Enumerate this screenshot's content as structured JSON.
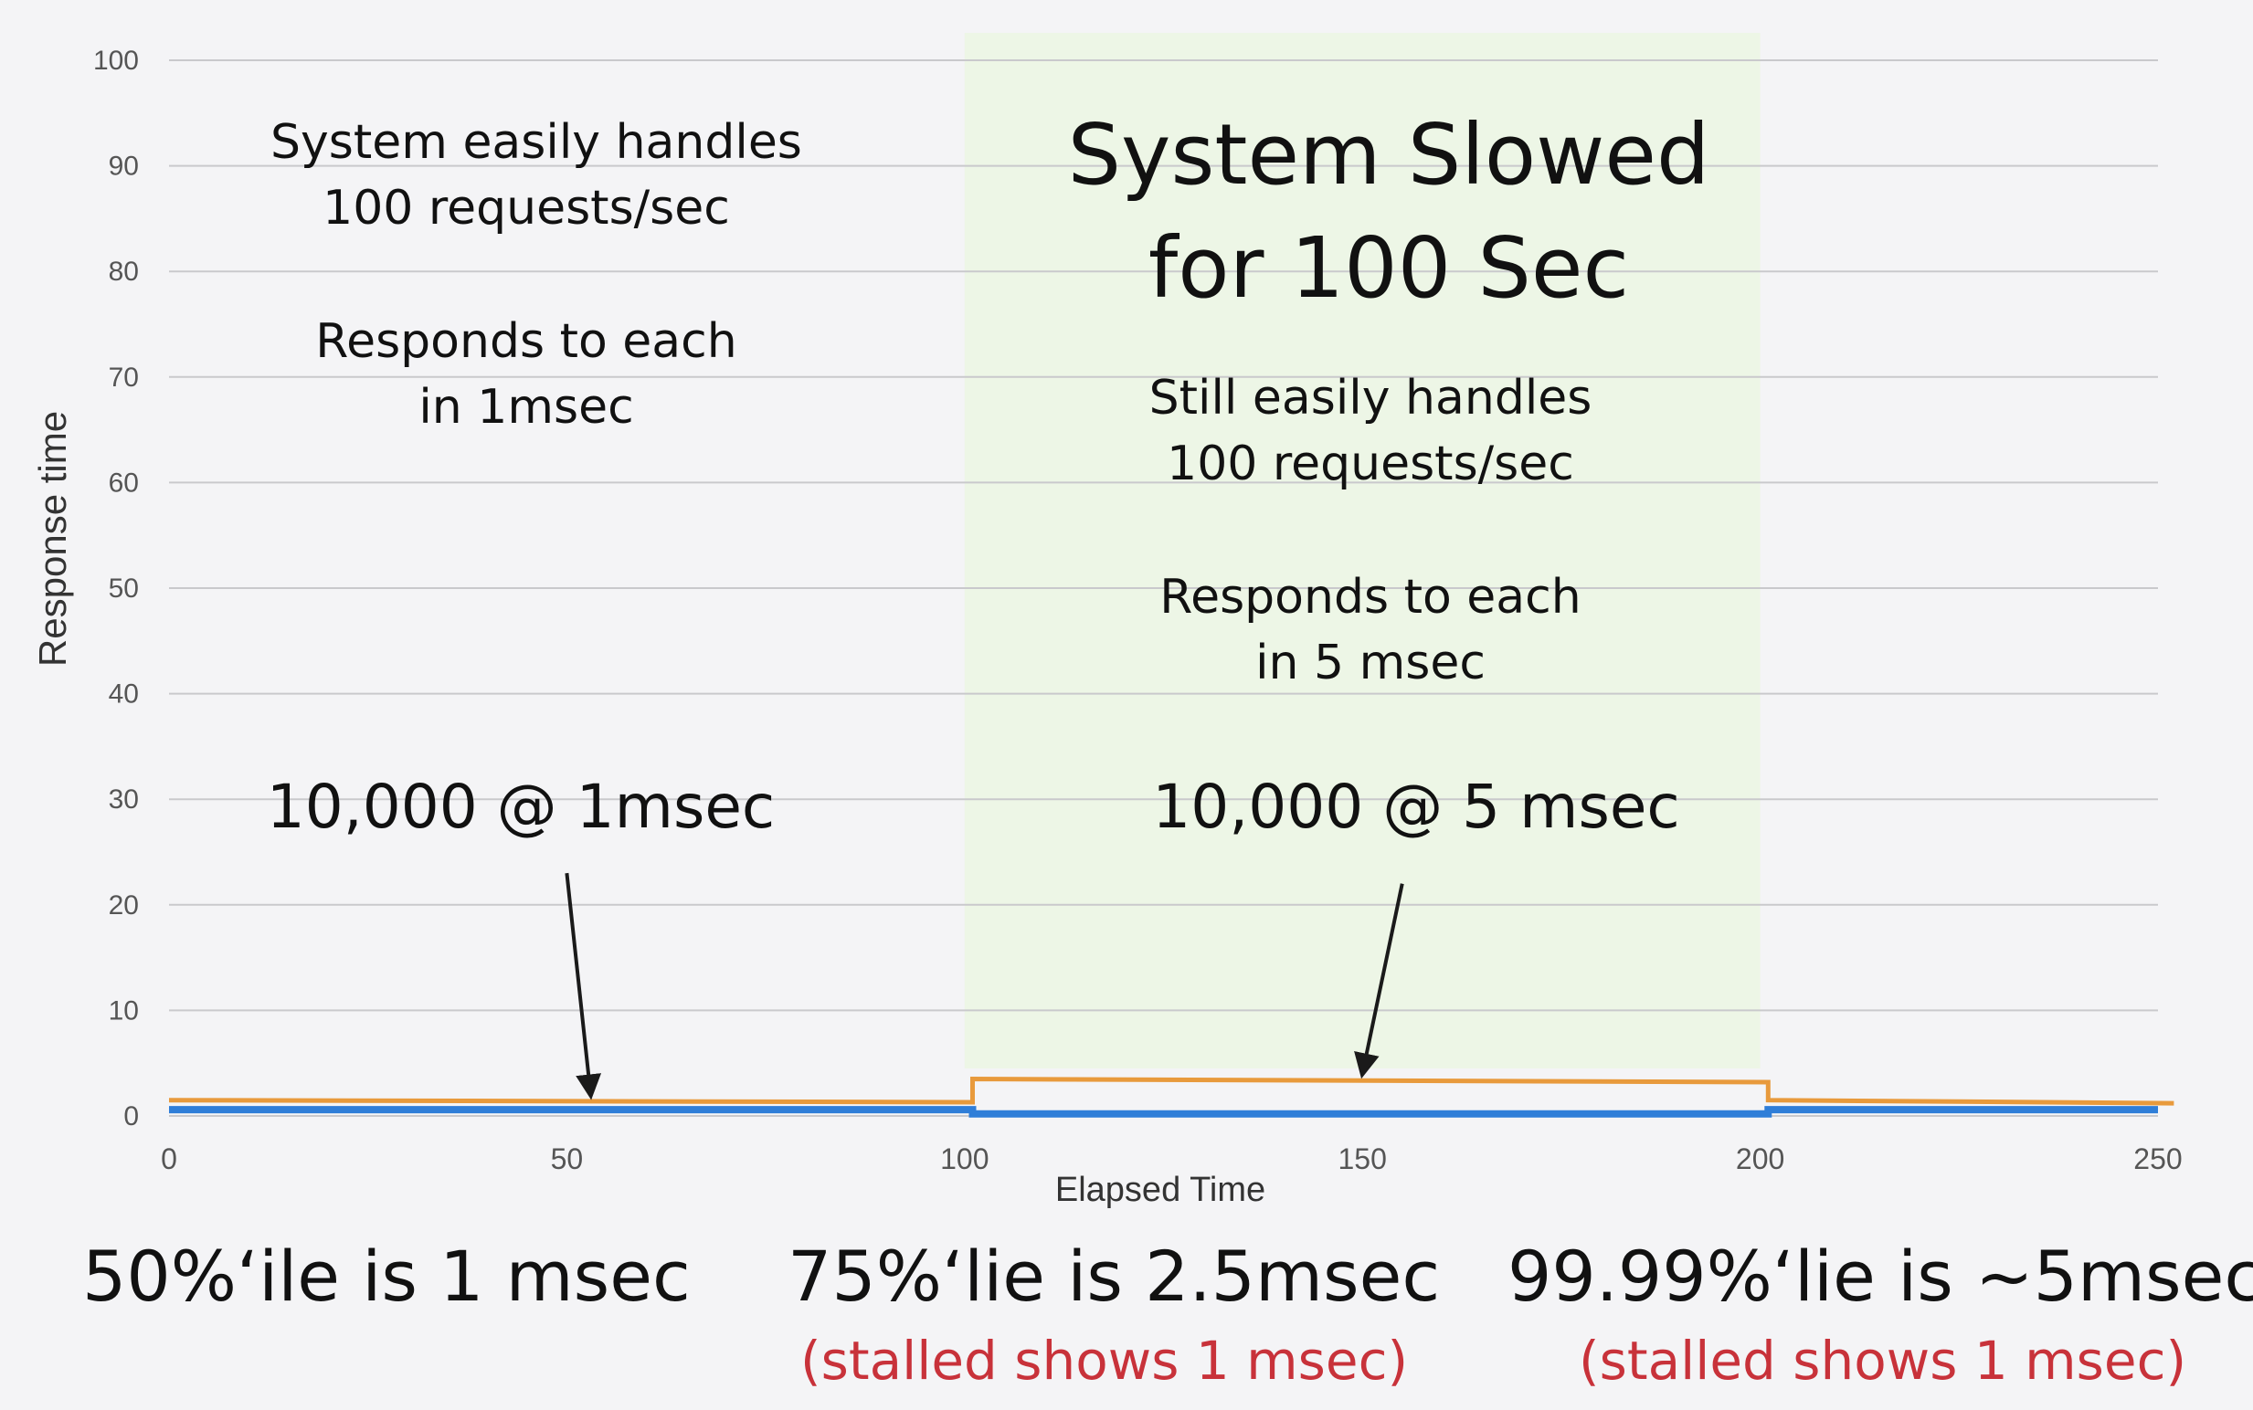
{
  "chart_data": {
    "type": "line",
    "xlabel": "Elapsed Time",
    "ylabel": "Response time",
    "xlim": [
      0,
      250
    ],
    "ylim": [
      0,
      100
    ],
    "x_ticks": [
      "0",
      "50",
      "100",
      "150",
      "200",
      "250"
    ],
    "y_ticks": [
      "0",
      "10",
      "20",
      "30",
      "40",
      "50",
      "60",
      "70",
      "80",
      "90",
      "100"
    ],
    "grid": true,
    "highlight_region": {
      "x_start": 100,
      "x_end": 200,
      "color": "#edf6e6"
    },
    "series": [
      {
        "color": "#e89a3c",
        "points": [
          [
            0,
            1.5
          ],
          [
            101,
            1.3
          ],
          [
            101,
            3.5
          ],
          [
            201,
            3.2
          ],
          [
            201,
            1.5
          ],
          [
            252,
            1.2
          ]
        ]
      },
      {
        "color": "#2f7ed8",
        "points": [
          [
            0,
            0.6
          ],
          [
            101,
            0.6
          ],
          [
            101,
            0.2
          ],
          [
            201,
            0.2
          ],
          [
            201,
            0.6
          ],
          [
            250,
            0.6
          ]
        ]
      }
    ],
    "annotations": {
      "left_handles": [
        "System easily handles",
        "100 requests/sec"
      ],
      "left_responds": [
        "Responds to each",
        "in 1msec"
      ],
      "left_count": "10,000 @ 1msec",
      "middle_title": [
        "System Slowed",
        "for 100 Sec"
      ],
      "middle_handles": [
        "Still easily handles",
        "100 requests/sec"
      ],
      "middle_responds": [
        "Responds to each",
        "in 5 msec"
      ],
      "middle_count": "10,000 @ 5 msec"
    },
    "arrows": [
      {
        "from": [
          50,
          23
        ],
        "to": [
          53,
          2
        ]
      },
      {
        "from": [
          155,
          22
        ],
        "to": [
          150,
          4
        ]
      }
    ]
  },
  "summary": {
    "p50": "50%‘ile is 1 msec",
    "p75": "75%‘lie is 2.5msec",
    "p75_note": "(stalled shows 1 msec)",
    "p9999": "99.99%‘lie is ~5msec",
    "p9999_note": "(stalled shows 1 msec)"
  }
}
